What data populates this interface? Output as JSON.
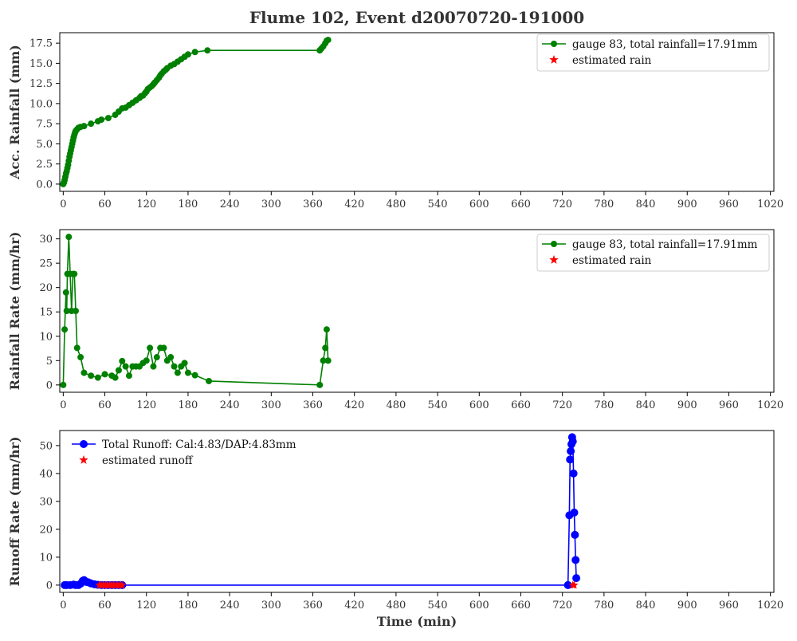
{
  "title": "Flume 102, Event d20070720-191000",
  "chart_data": [
    {
      "type": "line",
      "ylabel": "Acc. Rainfall (mm)",
      "xlabel": "",
      "xlim": [
        -5,
        1025
      ],
      "ylim": [
        -0.9,
        18.8
      ],
      "xticks": [
        0,
        60,
        120,
        180,
        240,
        300,
        360,
        420,
        480,
        540,
        600,
        660,
        720,
        780,
        840,
        900,
        960,
        1020
      ],
      "yticks": [
        0.0,
        2.5,
        5.0,
        7.5,
        10.0,
        12.5,
        15.0,
        17.5
      ],
      "ytick_labels": [
        "0.0",
        "2.5",
        "5.0",
        "7.5",
        "10.0",
        "12.5",
        "15.0",
        "17.5"
      ],
      "legend": {
        "placement": "top-right",
        "frame": true
      },
      "series": [
        {
          "name": "gauge 83, total rainfall=17.91mm",
          "color": "#008000",
          "marker": "circle",
          "x": [
            0,
            1,
            2,
            3,
            4,
            5,
            6,
            7,
            8,
            9,
            10,
            11,
            12,
            13,
            14,
            15,
            16,
            17,
            18,
            20,
            22,
            25,
            30,
            40,
            50,
            55,
            65,
            75,
            80,
            85,
            90,
            95,
            100,
            105,
            110,
            112,
            115,
            118,
            120,
            122,
            125,
            128,
            130,
            132,
            135,
            138,
            140,
            142,
            145,
            148,
            150,
            155,
            160,
            165,
            170,
            175,
            180,
            190,
            208,
            370,
            372,
            375,
            378,
            380,
            382
          ],
          "y": [
            0.0,
            0.2,
            0.5,
            0.9,
            1.3,
            1.6,
            2.0,
            2.4,
            2.9,
            3.4,
            3.8,
            4.2,
            4.6,
            5.0,
            5.4,
            5.8,
            6.1,
            6.4,
            6.6,
            6.8,
            7.0,
            7.1,
            7.2,
            7.5,
            7.8,
            8.0,
            8.2,
            8.6,
            9.0,
            9.4,
            9.5,
            9.8,
            10.1,
            10.4,
            10.7,
            10.9,
            11.0,
            11.3,
            11.5,
            11.8,
            12.0,
            12.2,
            12.4,
            12.6,
            12.9,
            13.2,
            13.5,
            13.7,
            14.0,
            14.2,
            14.4,
            14.7,
            14.9,
            15.2,
            15.5,
            15.8,
            16.1,
            16.4,
            16.6,
            16.6,
            16.8,
            17.1,
            17.5,
            17.8,
            17.9
          ]
        },
        {
          "name": "estimated rain",
          "color": "#ff0000",
          "marker": "star",
          "x": [],
          "y": []
        }
      ]
    },
    {
      "type": "line",
      "ylabel": "Rainfall Rate (mm/hr)",
      "xlabel": "",
      "xlim": [
        -5,
        1025
      ],
      "ylim": [
        -1.5,
        31.9
      ],
      "xticks": [
        0,
        60,
        120,
        180,
        240,
        300,
        360,
        420,
        480,
        540,
        600,
        660,
        720,
        780,
        840,
        900,
        960,
        1020
      ],
      "yticks": [
        0,
        5,
        10,
        15,
        20,
        25,
        30
      ],
      "ytick_labels": [
        "0",
        "5",
        "10",
        "15",
        "20",
        "25",
        "30"
      ],
      "legend": {
        "placement": "top-right",
        "frame": true
      },
      "series": [
        {
          "name": "gauge 83, total rainfall=17.91mm",
          "color": "#008000",
          "marker": "circle",
          "x": [
            0,
            2,
            4,
            5,
            6,
            8,
            10,
            12,
            14,
            16,
            18,
            20,
            25,
            30,
            40,
            50,
            60,
            70,
            75,
            80,
            85,
            90,
            95,
            100,
            105,
            110,
            115,
            120,
            125,
            130,
            135,
            140,
            145,
            150,
            155,
            160,
            165,
            170,
            175,
            180,
            190,
            210,
            370,
            375,
            378,
            380,
            382
          ],
          "y": [
            0.0,
            11.4,
            19.0,
            15.2,
            22.8,
            30.4,
            22.8,
            15.2,
            22.8,
            22.8,
            15.2,
            7.6,
            5.7,
            2.5,
            1.9,
            1.5,
            2.2,
            1.9,
            1.5,
            3.0,
            4.9,
            3.8,
            1.9,
            3.8,
            3.8,
            3.8,
            4.5,
            5.0,
            7.6,
            3.8,
            5.7,
            7.6,
            7.6,
            5.0,
            5.7,
            3.8,
            2.5,
            3.8,
            4.5,
            2.5,
            2.0,
            0.8,
            0.0,
            5.0,
            7.6,
            11.4,
            5.0
          ]
        },
        {
          "name": "estimated rain",
          "color": "#ff0000",
          "marker": "star",
          "x": [],
          "y": []
        }
      ]
    },
    {
      "type": "line",
      "ylabel": "Runoff Rate (mm/hr)",
      "xlabel": "Time (min)",
      "xlim": [
        -5,
        1025
      ],
      "ylim": [
        -2.6,
        55.4
      ],
      "xticks": [
        0,
        60,
        120,
        180,
        240,
        300,
        360,
        420,
        480,
        540,
        600,
        660,
        720,
        780,
        840,
        900,
        960,
        1020
      ],
      "yticks": [
        0,
        10,
        20,
        30,
        40,
        50
      ],
      "ytick_labels": [
        "0",
        "10",
        "20",
        "30",
        "40",
        "50"
      ],
      "legend": {
        "placement": "top-left",
        "frame": false
      },
      "series": [
        {
          "name": "Total Runoff: Cal:4.83/DAP:4.83mm",
          "color": "#0000ff",
          "marker": "circle",
          "x": [
            2,
            5,
            10,
            15,
            18,
            22,
            25,
            28,
            30,
            33,
            36,
            40,
            45,
            50,
            55,
            60,
            65,
            70,
            75,
            80,
            85,
            728,
            730,
            731,
            732,
            733,
            734,
            735,
            736,
            737,
            738,
            739,
            740
          ],
          "y": [
            0.0,
            0.0,
            0.0,
            0.2,
            0.0,
            0.0,
            0.5,
            1.5,
            1.8,
            1.2,
            1.0,
            0.6,
            0.3,
            0.1,
            0.0,
            0.0,
            0.0,
            0.0,
            0.0,
            0.0,
            0.0,
            0.0,
            25.0,
            45.0,
            48.0,
            50.5,
            53.0,
            51.5,
            40.0,
            26.0,
            18.0,
            9.0,
            2.5
          ]
        },
        {
          "name": "estimated runoff",
          "color": "#ff0000",
          "marker": "star",
          "x": [
            52,
            55,
            58,
            61,
            64,
            67,
            70,
            73,
            76,
            79,
            82,
            85,
            735,
            737
          ],
          "y": [
            0,
            0,
            0,
            0,
            0,
            0,
            0,
            0,
            0,
            0,
            0,
            0,
            0,
            0
          ]
        }
      ]
    }
  ]
}
